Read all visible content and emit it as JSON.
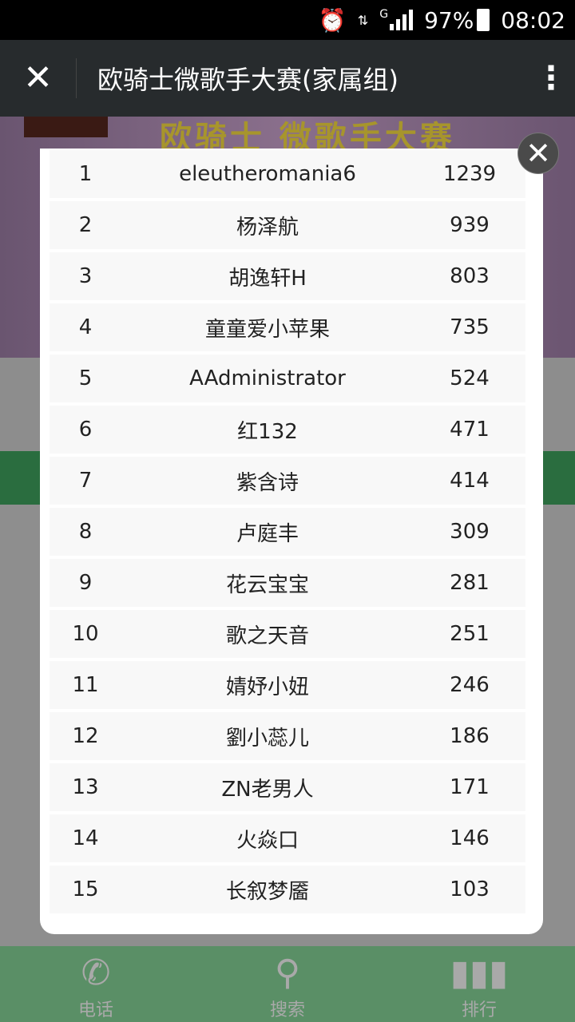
{
  "status_bar": {
    "battery": "97%",
    "time": "08:02",
    "network": "G"
  },
  "app_bar": {
    "title": "欧骑士微歌手大赛(家属组)"
  },
  "banner": {
    "text": "欧骑士  微歌手大赛"
  },
  "ranking": [
    {
      "rank": "1",
      "name": "eleutheromania6",
      "score": "1239"
    },
    {
      "rank": "2",
      "name": "杨泽航",
      "score": "939"
    },
    {
      "rank": "3",
      "name": "胡逸轩H",
      "score": "803"
    },
    {
      "rank": "4",
      "name": "童童爱小苹果",
      "score": "735"
    },
    {
      "rank": "5",
      "name": "AAdministrator",
      "score": "524"
    },
    {
      "rank": "6",
      "name": "红132",
      "score": "471"
    },
    {
      "rank": "7",
      "name": "紫含诗",
      "score": "414"
    },
    {
      "rank": "8",
      "name": "卢庭丰",
      "score": "309"
    },
    {
      "rank": "9",
      "name": "花云宝宝",
      "score": "281"
    },
    {
      "rank": "10",
      "name": "歌之天音",
      "score": "251"
    },
    {
      "rank": "11",
      "name": "婧妤小妞",
      "score": "246"
    },
    {
      "rank": "12",
      "name": "劉小蕊儿",
      "score": "186"
    },
    {
      "rank": "13",
      "name": "ZN老男人",
      "score": "171"
    },
    {
      "rank": "14",
      "name": "火焱口",
      "score": "146"
    },
    {
      "rank": "15",
      "name": "长叙梦靥",
      "score": "103"
    }
  ],
  "bottom_nav": [
    {
      "label": "电话",
      "icon": "phone-icon"
    },
    {
      "label": "搜索",
      "icon": "search-icon"
    },
    {
      "label": "排行",
      "icon": "bar-chart-icon"
    }
  ],
  "colors": {
    "nav_green": "#5a8f66",
    "app_bar": "#272b2d"
  }
}
